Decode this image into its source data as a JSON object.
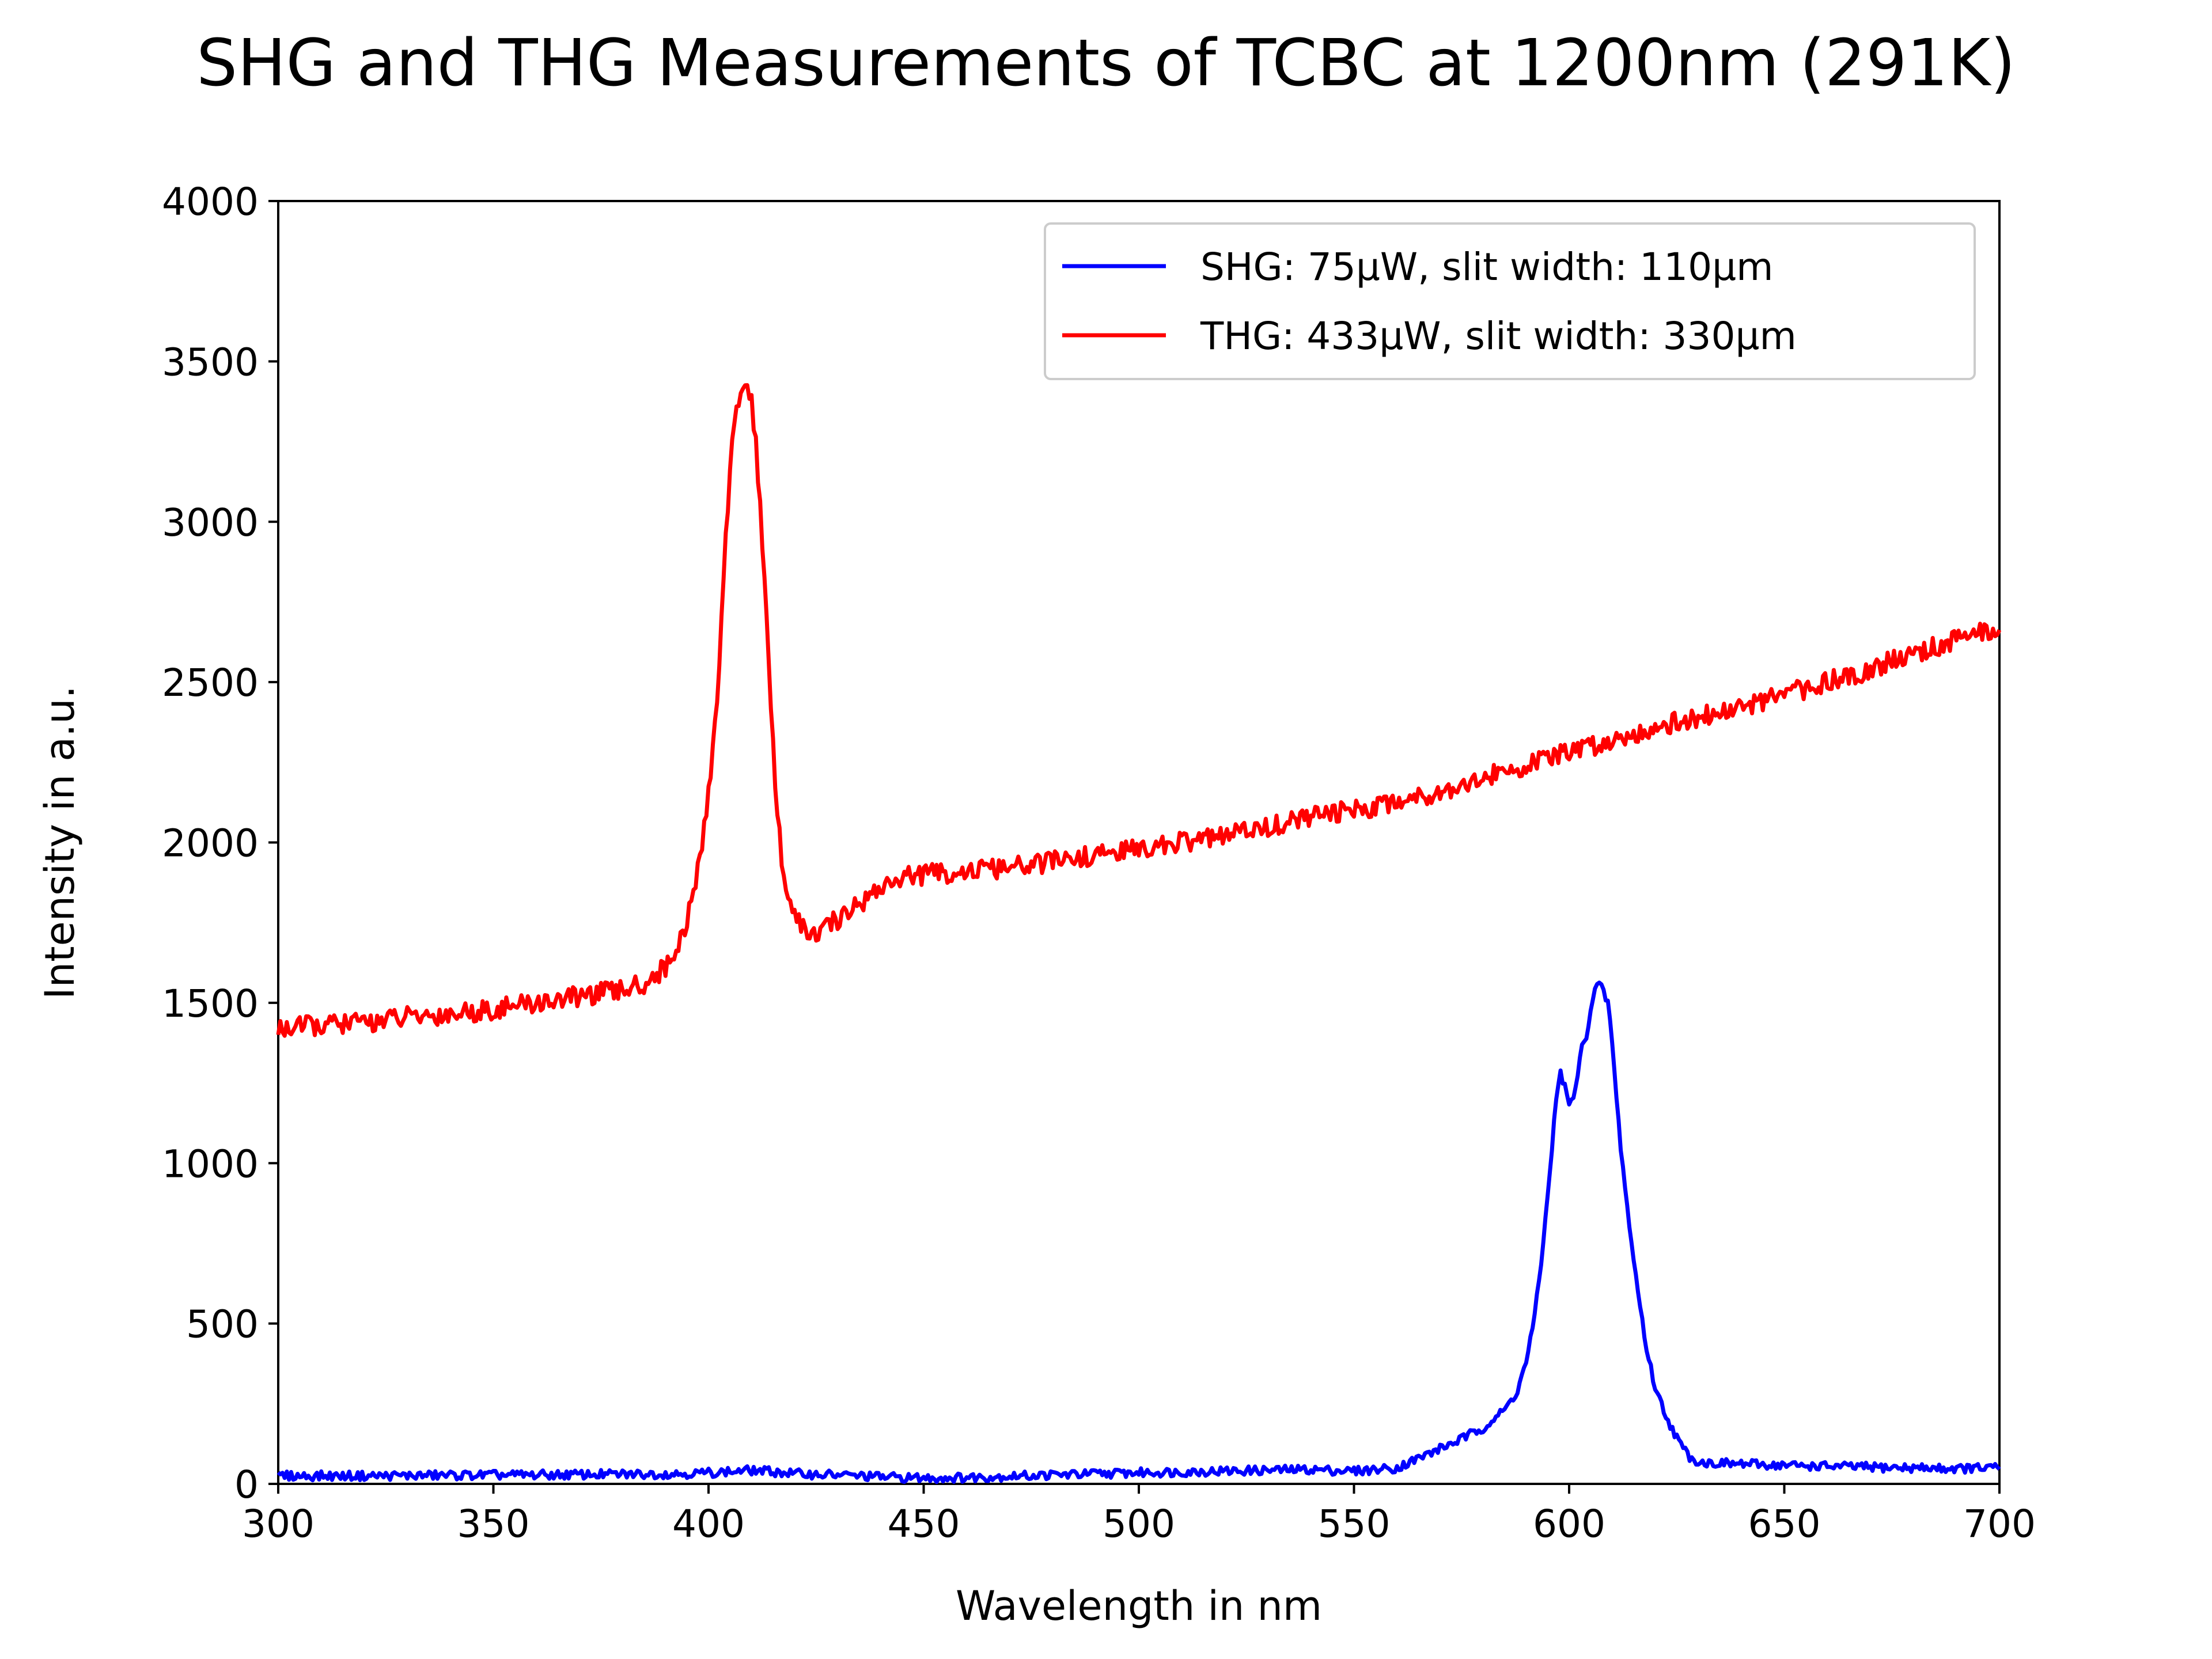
{
  "chart_data": {
    "type": "line",
    "title": "SHG and THG Measurements of TCBC at 1200nm (291K)",
    "xlabel": "Wavelength in nm",
    "ylabel": "Intensity in a.u.",
    "xlim": [
      300,
      700
    ],
    "ylim": [
      0,
      4000
    ],
    "xticks": [
      "300",
      "350",
      "400",
      "450",
      "500",
      "550",
      "600",
      "650",
      "700"
    ],
    "yticks": [
      "0",
      "500",
      "1000",
      "1500",
      "2000",
      "2500",
      "3000",
      "3500",
      "4000"
    ],
    "grid": false,
    "legend_position": "upper right",
    "series": [
      {
        "name": "SHG: 75μW, slit width: 110μm",
        "color": "#0000ff",
        "x": [
          300,
          320,
          340,
          360,
          380,
          395,
          405,
          410,
          415,
          420,
          430,
          440,
          450,
          460,
          480,
          500,
          520,
          540,
          550,
          560,
          565,
          570,
          575,
          580,
          585,
          588,
          590,
          592,
          594,
          596,
          597,
          598,
          599,
          600,
          601,
          602,
          603,
          604,
          605,
          606,
          607,
          608,
          609,
          610,
          611,
          612,
          613,
          614,
          616,
          618,
          620,
          622,
          624,
          626,
          628,
          630,
          632,
          634,
          640,
          650,
          660,
          670,
          680,
          690,
          700
        ],
        "y": [
          25,
          25,
          27,
          28,
          30,
          32,
          38,
          42,
          38,
          32,
          28,
          22,
          18,
          20,
          28,
          35,
          40,
          45,
          40,
          50,
          80,
          110,
          140,
          175,
          230,
          290,
          380,
          520,
          750,
          1050,
          1200,
          1280,
          1240,
          1180,
          1200,
          1280,
          1360,
          1400,
          1480,
          1540,
          1560,
          1530,
          1500,
          1380,
          1200,
          1050,
          930,
          800,
          600,
          420,
          300,
          230,
          170,
          120,
          85,
          70,
          65,
          65,
          62,
          58,
          55,
          52,
          50,
          48,
          50
        ]
      },
      {
        "name": "THG: 433μW, slit width: 330μm",
        "color": "#ff0000",
        "x": [
          300,
          310,
          320,
          330,
          340,
          350,
          360,
          370,
          380,
          385,
          390,
          393,
          396,
          398,
          400,
          402,
          403,
          404,
          405,
          406,
          407,
          408,
          409,
          410,
          411,
          412,
          413,
          414,
          415,
          416,
          417,
          418,
          420,
          422,
          424,
          426,
          428,
          430,
          435,
          440,
          445,
          450,
          460,
          470,
          480,
          490,
          500,
          510,
          520,
          530,
          540,
          550,
          560,
          570,
          580,
          590,
          600,
          610,
          620,
          630,
          640,
          650,
          660,
          670,
          680,
          690,
          700
        ],
        "y": [
          1420,
          1430,
          1440,
          1455,
          1465,
          1480,
          1500,
          1520,
          1540,
          1560,
          1610,
          1680,
          1800,
          1950,
          2150,
          2450,
          2700,
          2950,
          3150,
          3300,
          3390,
          3430,
          3420,
          3380,
          3250,
          3050,
          2800,
          2550,
          2300,
          2100,
          1950,
          1860,
          1770,
          1730,
          1710,
          1720,
          1740,
          1760,
          1810,
          1860,
          1890,
          1900,
          1910,
          1920,
          1940,
          1960,
          1980,
          2000,
          2020,
          2050,
          2080,
          2100,
          2130,
          2160,
          2200,
          2240,
          2280,
          2320,
          2360,
          2390,
          2420,
          2460,
          2500,
          2540,
          2590,
          2630,
          2670
        ]
      }
    ]
  }
}
